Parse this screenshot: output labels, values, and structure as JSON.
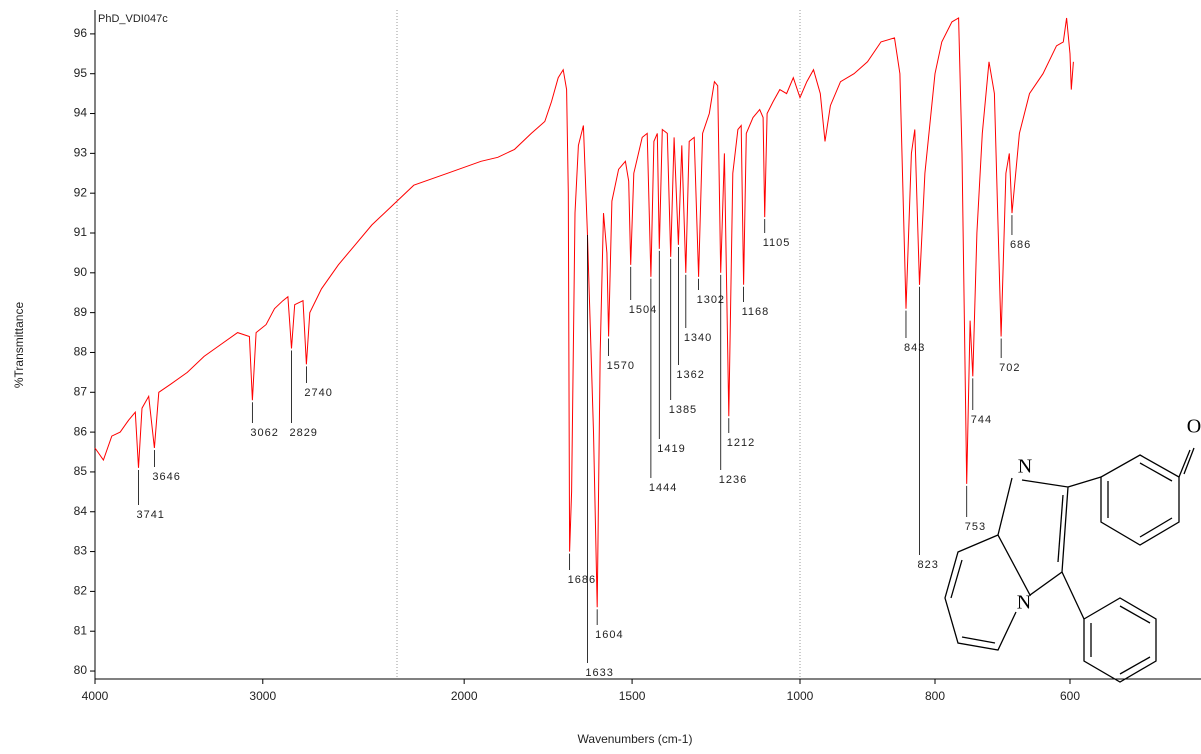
{
  "chart_data": {
    "type": "line",
    "xlabel": "Wavenumbers (cm-1)",
    "ylabel": "%Transmittance",
    "xlim": [
      4000,
      400
    ],
    "ylim": [
      79.8,
      96.6
    ],
    "x_breaks": [
      2200,
      1000
    ],
    "xticks": [
      4000,
      3000,
      2000,
      1500,
      1000,
      800,
      600
    ],
    "yticks": [
      80,
      81,
      82,
      83,
      84,
      85,
      86,
      87,
      88,
      89,
      90,
      91,
      92,
      93,
      94,
      95,
      96
    ],
    "x": [
      4000,
      3950,
      3900,
      3850,
      3800,
      3760,
      3741,
      3720,
      3680,
      3646,
      3620,
      3550,
      3450,
      3350,
      3250,
      3150,
      3080,
      3062,
      3040,
      2980,
      2930,
      2880,
      2850,
      2829,
      2810,
      2760,
      2740,
      2720,
      2650,
      2550,
      2450,
      2350,
      2250,
      2150,
      2050,
      1950,
      1900,
      1850,
      1800,
      1760,
      1740,
      1720,
      1705,
      1695,
      1690,
      1686,
      1680,
      1670,
      1660,
      1645,
      1633,
      1615,
      1604,
      1595,
      1585,
      1575,
      1570,
      1560,
      1540,
      1520,
      1510,
      1504,
      1495,
      1470,
      1455,
      1444,
      1435,
      1425,
      1419,
      1410,
      1395,
      1385,
      1375,
      1362,
      1352,
      1340,
      1330,
      1315,
      1302,
      1290,
      1270,
      1255,
      1245,
      1236,
      1225,
      1212,
      1200,
      1185,
      1175,
      1168,
      1160,
      1140,
      1120,
      1110,
      1105,
      1098,
      1080,
      1060,
      1040,
      1020,
      1000,
      990,
      980,
      970,
      963,
      955,
      940,
      920,
      900,
      880,
      860,
      852,
      843,
      835,
      830,
      823,
      815,
      800,
      790,
      775,
      765,
      760,
      753,
      748,
      744,
      738,
      730,
      720,
      712,
      702,
      695,
      690,
      686,
      675,
      660,
      640,
      620,
      610,
      605,
      600,
      598,
      595
    ],
    "series": [
      {
        "name": "PhD_VDI047c",
        "color": "#ff0000",
        "values": [
          85.6,
          85.3,
          85.9,
          86.0,
          86.3,
          86.5,
          85.1,
          86.6,
          86.9,
          85.6,
          87.0,
          87.2,
          87.5,
          87.9,
          88.2,
          88.5,
          88.4,
          86.8,
          88.5,
          88.7,
          89.1,
          89.3,
          89.4,
          88.1,
          89.2,
          89.3,
          87.7,
          89.0,
          89.6,
          90.2,
          90.7,
          91.2,
          91.6,
          92.2,
          92.5,
          92.8,
          92.9,
          93.1,
          93.5,
          93.8,
          94.3,
          94.9,
          95.1,
          94.6,
          92.0,
          83.0,
          84.5,
          91.5,
          93.2,
          93.7,
          91.0,
          86.0,
          81.6,
          88.0,
          91.5,
          90.5,
          88.4,
          91.8,
          92.6,
          92.8,
          92.3,
          90.2,
          92.5,
          93.4,
          93.5,
          89.9,
          93.3,
          93.5,
          90.6,
          93.6,
          93.5,
          90.4,
          93.4,
          90.7,
          93.2,
          90.0,
          93.3,
          93.4,
          89.9,
          93.5,
          94.0,
          94.8,
          94.7,
          90.0,
          93.0,
          86.4,
          92.5,
          93.6,
          93.7,
          89.7,
          93.5,
          93.9,
          94.1,
          93.9,
          91.4,
          94.0,
          94.3,
          94.6,
          94.5,
          94.9,
          94.4,
          94.8,
          95.1,
          94.5,
          93.3,
          94.2,
          94.8,
          95.0,
          95.3,
          95.8,
          95.9,
          95.0,
          89.1,
          93.0,
          93.6,
          89.7,
          92.5,
          95.0,
          95.8,
          96.3,
          96.4,
          93.0,
          84.7,
          88.8,
          87.4,
          91.0,
          93.5,
          95.3,
          94.5,
          88.4,
          92.5,
          93.0,
          91.5,
          93.5,
          94.5,
          95.0,
          95.7,
          95.8,
          96.4,
          95.5,
          94.6,
          95.3
        ]
      }
    ],
    "peaks": {
      "x": [
        3741,
        3646,
        3062,
        2829,
        2740,
        1686,
        1633,
        1604,
        1570,
        1504,
        1444,
        1419,
        1385,
        1362,
        1340,
        1302,
        1236,
        1212,
        1168,
        1105,
        843,
        823,
        753,
        744,
        702,
        686
      ],
      "y": [
        85.1,
        85.6,
        86.8,
        88.1,
        87.7,
        83.0,
        91.0,
        81.6,
        88.4,
        90.2,
        89.9,
        90.6,
        90.4,
        90.7,
        90.0,
        89.9,
        90.0,
        86.4,
        89.7,
        91.4,
        89.1,
        89.7,
        84.7,
        87.4,
        88.4,
        91.5
      ]
    }
  },
  "structure": {
    "labels": [
      "N",
      "N",
      "O"
    ]
  }
}
